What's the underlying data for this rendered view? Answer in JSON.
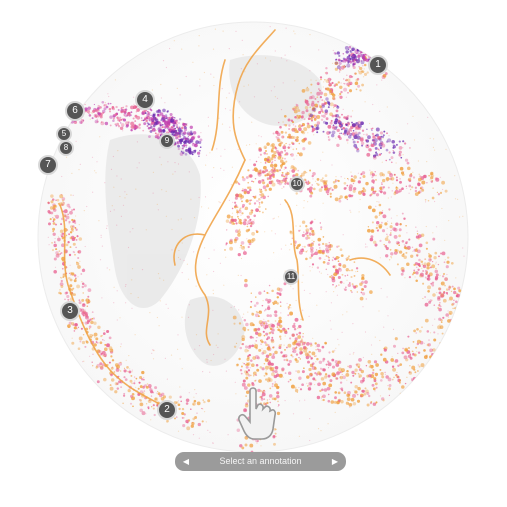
{
  "markers": [
    {
      "id": "marker-1",
      "label": "1"
    },
    {
      "id": "marker-2",
      "label": "2"
    },
    {
      "id": "marker-3",
      "label": "3"
    },
    {
      "id": "marker-4",
      "label": "4"
    },
    {
      "id": "marker-5",
      "label": "5"
    },
    {
      "id": "marker-6",
      "label": "6"
    },
    {
      "id": "marker-7",
      "label": "7"
    },
    {
      "id": "marker-8",
      "label": "8"
    },
    {
      "id": "marker-9",
      "label": "9"
    },
    {
      "id": "marker-10",
      "label": "10"
    },
    {
      "id": "marker-11",
      "label": "11"
    }
  ],
  "annotation_nav": {
    "label": "Select an annotation",
    "prev_icon": "triangle-left-icon",
    "next_icon": "triangle-right-icon"
  },
  "hand_icon": "hand-pointer-icon",
  "colors": {
    "orange": "#f0a040",
    "pink": "#e86090",
    "magenta": "#c040b0",
    "purple": "#6a2ab0",
    "land": "#e6e6e6"
  }
}
